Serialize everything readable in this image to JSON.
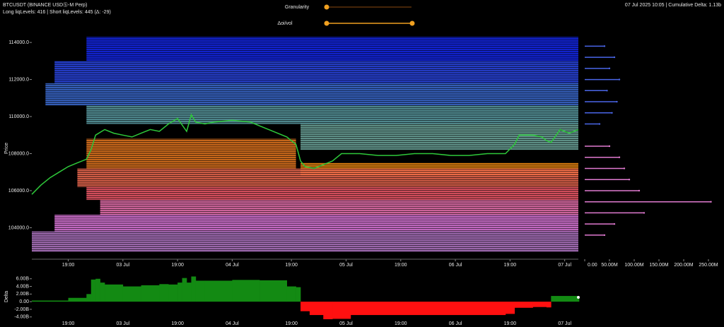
{
  "header": {
    "symbol": "BTCUSDT (BINANCE USDⓈ-M Perp)",
    "levels": "Long liqLevels: 416 | Short liqLevels: 445 (Δ: -29)",
    "status": "07 Jul 2025 10:05 | Cumulative Delta: 1.13b"
  },
  "controls": [
    {
      "label": "Granularity"
    },
    {
      "label": "Δoi/vol"
    }
  ],
  "chart_data": [
    {
      "type": "line",
      "ylabel": "Price",
      "color": "#2ec83a",
      "x": [
        0,
        2,
        4,
        6,
        8,
        10,
        12,
        13,
        14,
        16,
        18,
        20,
        22,
        24,
        26,
        28,
        30,
        32,
        34,
        35,
        36,
        38,
        40,
        44,
        48,
        52,
        56,
        58,
        59,
        60,
        62,
        66,
        68,
        72,
        76,
        80,
        84,
        88,
        92,
        96,
        100,
        104,
        106,
        107,
        110,
        112,
        113,
        114,
        116,
        118,
        120
      ],
      "values": [
        105800,
        106300,
        106700,
        107000,
        107300,
        107500,
        107700,
        108200,
        109000,
        109300,
        109100,
        109000,
        108900,
        109100,
        109300,
        109200,
        109600,
        109900,
        109200,
        110100,
        109700,
        109600,
        109700,
        109800,
        109700,
        109300,
        108900,
        108500,
        107600,
        107300,
        107200,
        107600,
        108000,
        108000,
        107900,
        107900,
        108000,
        108000,
        107900,
        107900,
        108000,
        108000,
        108500,
        109000,
        109000,
        108900,
        108700,
        108600,
        109300,
        109100,
        109300
      ],
      "xlim": [
        0,
        120
      ],
      "ylim": [
        102300,
        114500
      ],
      "xticks": [
        {
          "value": 8,
          "label": "19:00"
        },
        {
          "value": 20,
          "label": "03 Jul"
        },
        {
          "value": 32,
          "label": "19:00"
        },
        {
          "value": 44,
          "label": "04 Jul"
        },
        {
          "value": 57,
          "label": "19:00"
        },
        {
          "value": 69,
          "label": "05 Jul"
        },
        {
          "value": 81,
          "label": "19:00"
        },
        {
          "value": 93,
          "label": "06 Jul"
        },
        {
          "value": 105,
          "label": "19:00"
        },
        {
          "value": 117,
          "label": "07 Jul"
        }
      ],
      "yticks": [
        {
          "value": 104000,
          "label": "104000.0"
        },
        {
          "value": 106000,
          "label": "106000.0"
        },
        {
          "value": 108000,
          "label": "108000.0"
        },
        {
          "value": 110000,
          "label": "110000.0"
        },
        {
          "value": 112000,
          "label": "112000.0"
        },
        {
          "value": 114000,
          "label": "114000.0"
        }
      ],
      "bands": [
        {
          "low": 113000,
          "high": 114300,
          "from": 12,
          "to": 120,
          "color": "#1428f0"
        },
        {
          "low": 111800,
          "high": 113000,
          "from": 5,
          "to": 120,
          "color": "#2a46e6"
        },
        {
          "low": 110600,
          "high": 111800,
          "from": 3,
          "to": 120,
          "color": "#3c6cd4"
        },
        {
          "low": 109600,
          "high": 110600,
          "from": 12,
          "to": 120,
          "color": "#5c9ea4"
        },
        {
          "low": 108200,
          "high": 109600,
          "from": 59,
          "to": 120,
          "color": "#6fa89e"
        },
        {
          "low": 107200,
          "high": 108800,
          "from": 12,
          "to": 58,
          "color": "#e8781e"
        },
        {
          "low": 106800,
          "high": 107500,
          "from": 59,
          "to": 120,
          "color": "#f08a10"
        },
        {
          "low": 106200,
          "high": 107200,
          "from": 10,
          "to": 120,
          "color": "#f06a50"
        },
        {
          "low": 105500,
          "high": 106200,
          "from": 12,
          "to": 120,
          "color": "#f45a6a"
        },
        {
          "low": 104700,
          "high": 105500,
          "from": 15,
          "to": 120,
          "color": "#f074b4"
        },
        {
          "low": 103800,
          "high": 104700,
          "from": 5,
          "to": 120,
          "color": "#e27ae0"
        },
        {
          "low": 102700,
          "high": 103800,
          "from": 0,
          "to": 120,
          "color": "#b478c8"
        }
      ]
    },
    {
      "type": "hbar",
      "series": [
        {
          "color": "#4a66e8",
          "prices": [
            113800,
            113200,
            112600,
            112000,
            111400,
            110800,
            110200,
            109600
          ],
          "values": [
            40,
            60,
            50,
            70,
            45,
            65,
            55,
            30
          ]
        },
        {
          "color": "#e07ad0",
          "prices": [
            108400,
            107800,
            107200,
            106600,
            106000,
            105400,
            104800,
            104200,
            103600
          ],
          "values": [
            50,
            70,
            80,
            90,
            110,
            255,
            120,
            60,
            40
          ]
        }
      ],
      "xlim": [
        0,
        280
      ],
      "xticks": [
        {
          "value": 0,
          "label": "0.00"
        },
        {
          "value": 50,
          "label": "50.00M"
        },
        {
          "value": 100,
          "label": "100.00M"
        },
        {
          "value": 150,
          "label": "150.00M"
        },
        {
          "value": 200,
          "label": "200.00M"
        },
        {
          "value": 250,
          "label": "250.00M"
        }
      ]
    },
    {
      "type": "step",
      "ylabel": "Delta",
      "color": "#138a13",
      "negative_color": "#ff1010",
      "x": [
        0,
        8,
        12,
        13,
        14,
        15,
        16,
        20,
        24,
        28,
        30,
        32,
        33,
        34,
        35,
        36,
        38,
        44,
        50,
        56,
        58,
        59,
        61,
        64,
        66,
        70,
        80,
        96,
        104,
        106,
        110,
        113,
        114,
        120
      ],
      "values": [
        0.3,
        1,
        2,
        5.8,
        6,
        5,
        4.5,
        4,
        4.3,
        4.6,
        4.5,
        5,
        6.2,
        5,
        6.6,
        5.5,
        5.5,
        5.7,
        5.6,
        4,
        3.8,
        -2.5,
        -3.5,
        -4.6,
        -4.5,
        -3.5,
        -3.5,
        -3.5,
        -3.2,
        -1.6,
        -1.4,
        -1.5,
        1.5,
        1.13
      ],
      "xlim": [
        0,
        120
      ],
      "ylim": [
        -4.6,
        7.8
      ],
      "xticks": [
        {
          "value": 8,
          "label": "19:00"
        },
        {
          "value": 20,
          "label": "03 Jul"
        },
        {
          "value": 32,
          "label": "19:00"
        },
        {
          "value": 44,
          "label": "04 Jul"
        },
        {
          "value": 57,
          "label": "19:00"
        },
        {
          "value": 69,
          "label": "05 Jul"
        },
        {
          "value": 81,
          "label": "19:00"
        },
        {
          "value": 93,
          "label": "06 Jul"
        },
        {
          "value": 105,
          "label": "19:00"
        },
        {
          "value": 117,
          "label": "07 Jul"
        }
      ],
      "yticks": [
        {
          "value": -4,
          "label": "-4.00B"
        },
        {
          "value": -2,
          "label": "-2.00B"
        },
        {
          "value": 0,
          "label": "0.00"
        },
        {
          "value": 2,
          "label": "2.00B"
        },
        {
          "value": 4,
          "label": "4.00B"
        },
        {
          "value": 6,
          "label": "6.00B"
        }
      ]
    }
  ]
}
